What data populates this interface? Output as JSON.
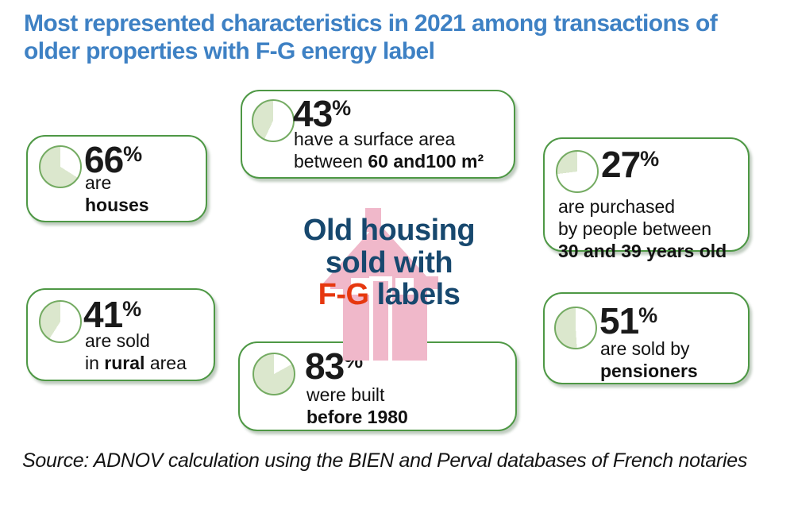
{
  "title": {
    "lines": [
      "Most represented characteristics in 2021 among transactions of",
      "older properties with F-G energy label"
    ]
  },
  "center_text": {
    "line1": "Old housing",
    "line2": "sold with",
    "line3_accent": "F-G",
    "line3_rest": " labels"
  },
  "percent_sign": "%",
  "cards": [
    {
      "name": "houses",
      "percent": "66",
      "pie_value": 66,
      "lines": [
        [
          {
            "t": "are"
          }
        ],
        [
          {
            "t": "houses",
            "b": true
          }
        ]
      ]
    },
    {
      "name": "surface-area",
      "percent": "43",
      "pie_value": 43,
      "lines": [
        [
          {
            "t": "have a surface area"
          }
        ],
        [
          {
            "t": "between "
          },
          {
            "t": "60 and100 m²",
            "b": true
          }
        ]
      ]
    },
    {
      "name": "buyer-age",
      "percent": "27",
      "pie_value": 27,
      "lines": [
        [
          {
            "t": "are purchased"
          }
        ],
        [
          {
            "t": "by people between"
          }
        ],
        [
          {
            "t": "30 and 39 years old",
            "b": true
          }
        ]
      ]
    },
    {
      "name": "rural-area",
      "percent": "41",
      "pie_value": 41,
      "lines": [
        [
          {
            "t": "are sold"
          }
        ],
        [
          {
            "t": "in "
          },
          {
            "t": "rural",
            "b": true
          },
          {
            "t": " area"
          }
        ]
      ]
    },
    {
      "name": "built-before-1980",
      "percent": "83",
      "pie_value": 83,
      "lines": [
        [
          {
            "t": "were built"
          }
        ],
        [
          {
            "t": "before 1980",
            "b": true
          }
        ]
      ]
    },
    {
      "name": "pensioners",
      "percent": "51",
      "pie_value": 51,
      "lines": [
        [
          {
            "t": "are sold by"
          }
        ],
        [
          {
            "t": "pensioners",
            "b": true
          }
        ]
      ]
    }
  ],
  "source": "Source: ADNOV calculation using the BIEN and Perval databases of French notaries",
  "colors": {
    "title_blue": "#3e81c4",
    "center_navy": "#17486e",
    "accent_red": "#e6380f",
    "card_border_green": "#4e9845",
    "pie_border_green": "#74ab62",
    "pie_fill_green": "#dbe7cd",
    "pie_empty": "#ffffff",
    "house_pink": "#f0b8ca",
    "text_black": "#1a1a1a"
  },
  "chart_data": {
    "type": "pie",
    "title": "Most represented characteristics in 2021 among transactions of older properties with F-G energy label",
    "subtitle": "Old housing sold with F-G labels",
    "series": [
      {
        "label": "are houses",
        "value": 66
      },
      {
        "label": "have a surface area between 60 and100 m²",
        "value": 43
      },
      {
        "label": "are purchased by people between 30 and 39 years old",
        "value": 27
      },
      {
        "label": "are sold in rural area",
        "value": 41
      },
      {
        "label": "were built before 1980",
        "value": 83
      },
      {
        "label": "are sold by pensioners",
        "value": 51
      }
    ],
    "unit": "%",
    "legend_position": "none",
    "note": "Six independent single-value pie indicators; green slice = stated percentage, white = remainder",
    "source": "Source: ADNOV calculation using the BIEN and Perval databases of French notaries"
  }
}
